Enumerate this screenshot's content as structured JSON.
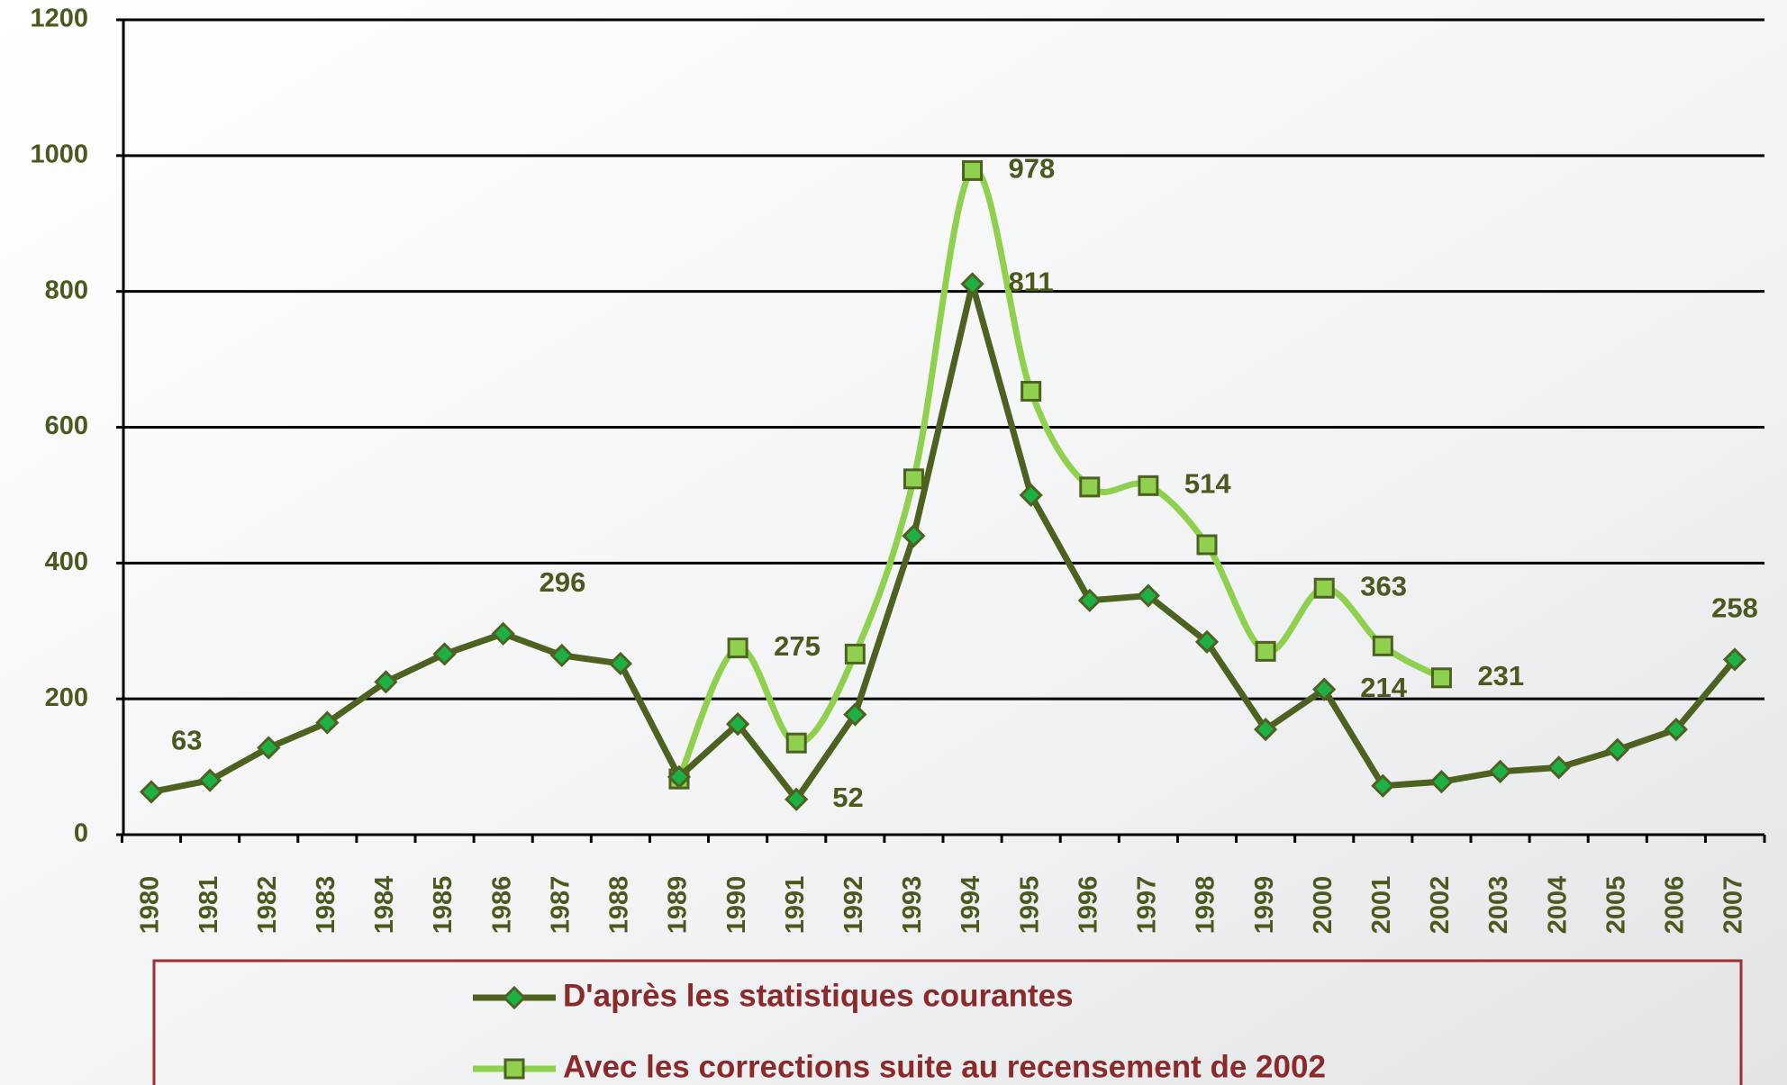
{
  "chart_data": {
    "type": "line",
    "categories": [
      "1980",
      "1981",
      "1982",
      "1983",
      "1984",
      "1985",
      "1986",
      "1987",
      "1988",
      "1989",
      "1990",
      "1991",
      "1992",
      "1993",
      "1994",
      "1995",
      "1996",
      "1997",
      "1998",
      "1999",
      "2000",
      "2001",
      "2002",
      "2003",
      "2004",
      "2005",
      "2006",
      "2007"
    ],
    "series": [
      {
        "name": "D'après les statistiques courantes",
        "color": "#4d6121",
        "marker": "diamond",
        "marker_color": "#1db045",
        "smooth": false,
        "values": [
          63,
          80,
          128,
          165,
          225,
          266,
          296,
          264,
          252,
          85,
          163,
          52,
          177,
          440,
          811,
          500,
          345,
          352,
          284,
          155,
          214,
          72,
          78,
          93,
          99,
          125,
          155,
          258
        ],
        "labeled": [
          0,
          6,
          11,
          14,
          20,
          27
        ]
      },
      {
        "name": "Avec les corrections suite au recensement de 2002",
        "color": "#8fd14f",
        "marker": "square",
        "marker_color": "#8fd14f",
        "smooth": true,
        "values": [
          null,
          null,
          null,
          null,
          null,
          null,
          null,
          null,
          null,
          82,
          275,
          135,
          266,
          524,
          978,
          653,
          512,
          514,
          427,
          270,
          363,
          278,
          231,
          null,
          null,
          null,
          null,
          null
        ],
        "labeled": [
          10,
          14,
          17,
          20,
          22
        ]
      }
    ],
    "ylim": [
      0,
      1200
    ],
    "yticks": [
      0,
      200,
      400,
      600,
      800,
      1000,
      1200
    ],
    "grid": true
  }
}
